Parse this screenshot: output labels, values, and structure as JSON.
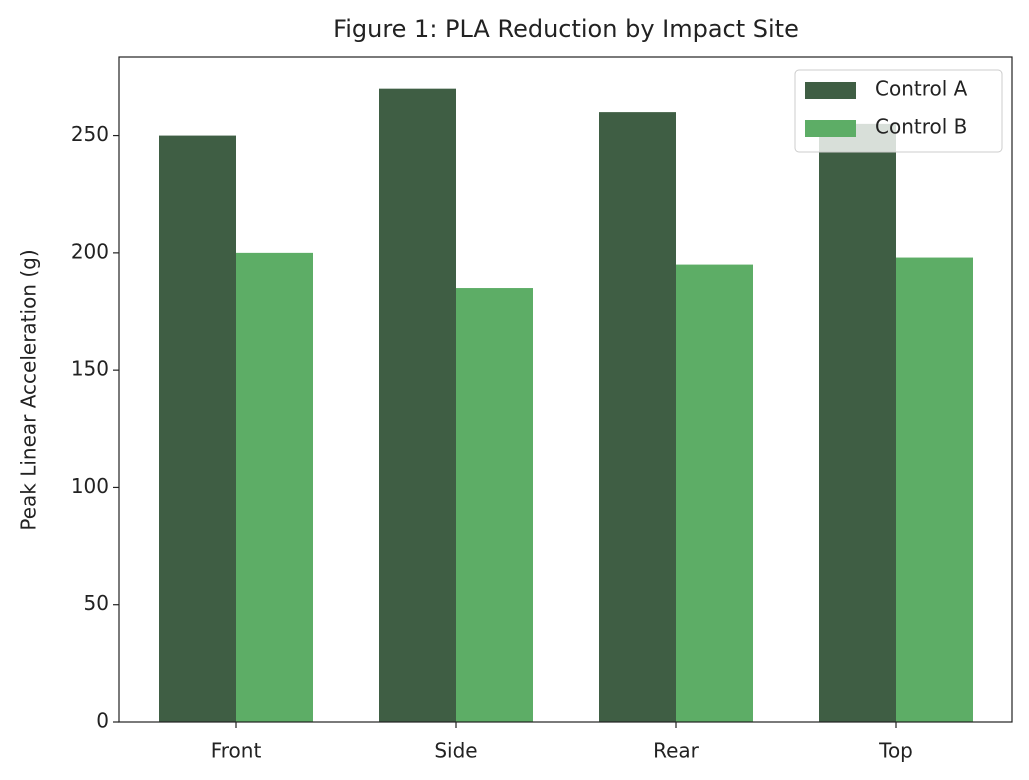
{
  "chart_data": {
    "type": "bar",
    "title": "Figure 1: PLA Reduction by Impact Site",
    "ylabel": "Peak Linear Acceleration (g)",
    "categories": [
      "Front",
      "Side",
      "Rear",
      "Top"
    ],
    "series": [
      {
        "name": "Control A",
        "color": "#3f5e44",
        "values": [
          250,
          270,
          260,
          255
        ]
      },
      {
        "name": "Control B",
        "color": "#5dad66",
        "values": [
          200,
          185,
          195,
          198
        ]
      }
    ],
    "ylim": [
      0,
      283.5
    ],
    "yticks": [
      0,
      50,
      100,
      150,
      200,
      250
    ],
    "grid": false,
    "legend": "upper right"
  }
}
